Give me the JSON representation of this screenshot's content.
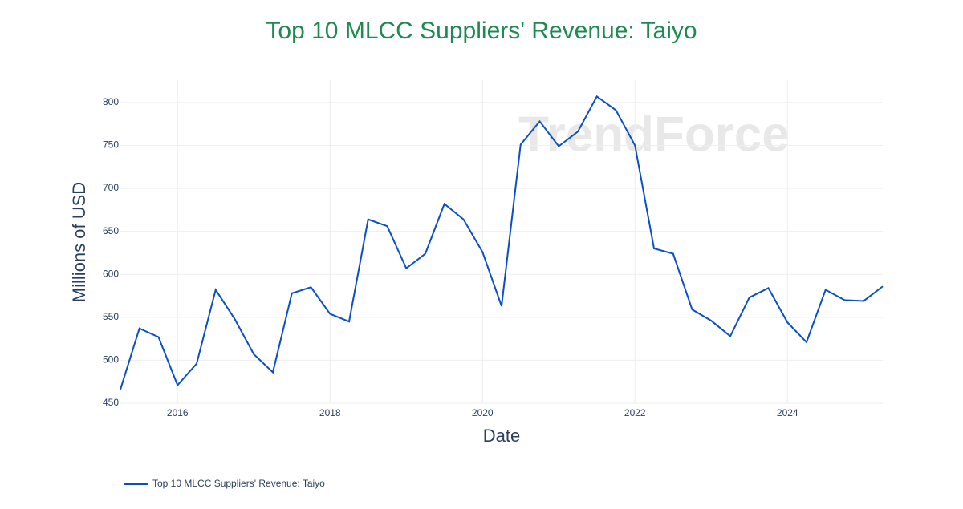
{
  "chart_data": {
    "type": "line",
    "title": "Top 10 MLCC Suppliers' Revenue: Taiyo",
    "watermark": "TrendForce",
    "x_label": "Date",
    "y_label": "Millions of USD",
    "x": [
      "2015-04",
      "2015-07",
      "2015-10",
      "2016-01",
      "2016-04",
      "2016-07",
      "2016-10",
      "2017-01",
      "2017-04",
      "2017-07",
      "2017-10",
      "2018-01",
      "2018-04",
      "2018-07",
      "2018-10",
      "2019-01",
      "2019-04",
      "2019-07",
      "2019-10",
      "2020-01",
      "2020-04",
      "2020-07",
      "2020-10",
      "2021-01",
      "2021-04",
      "2021-07",
      "2021-10",
      "2022-01",
      "2022-04",
      "2022-07",
      "2022-10",
      "2023-01",
      "2023-04",
      "2023-07",
      "2023-10",
      "2024-01",
      "2024-04",
      "2024-07",
      "2024-10",
      "2025-01",
      "2025-04"
    ],
    "series": [
      {
        "name": "Top 10 MLCC Suppliers' Revenue: Taiyo",
        "color": "#0a4fc9",
        "values": [
          466,
          537,
          527,
          471,
          496,
          582,
          548,
          507,
          486,
          578,
          585,
          554,
          545,
          664,
          656,
          607,
          624,
          682,
          664,
          626,
          563,
          751,
          778,
          749,
          766,
          807,
          791,
          750,
          630,
          624,
          559,
          546,
          528,
          573,
          584,
          544,
          521,
          582,
          570,
          569,
          586
        ]
      }
    ],
    "xlim": [
      "2015-04",
      "2025-04"
    ],
    "xticks": [
      2016,
      2018,
      2020,
      2022,
      2024
    ],
    "ylim": [
      450,
      826
    ],
    "yticks": [
      450,
      500,
      550,
      600,
      650,
      700,
      750,
      800
    ],
    "grid": true,
    "legend": "bottom-left"
  }
}
